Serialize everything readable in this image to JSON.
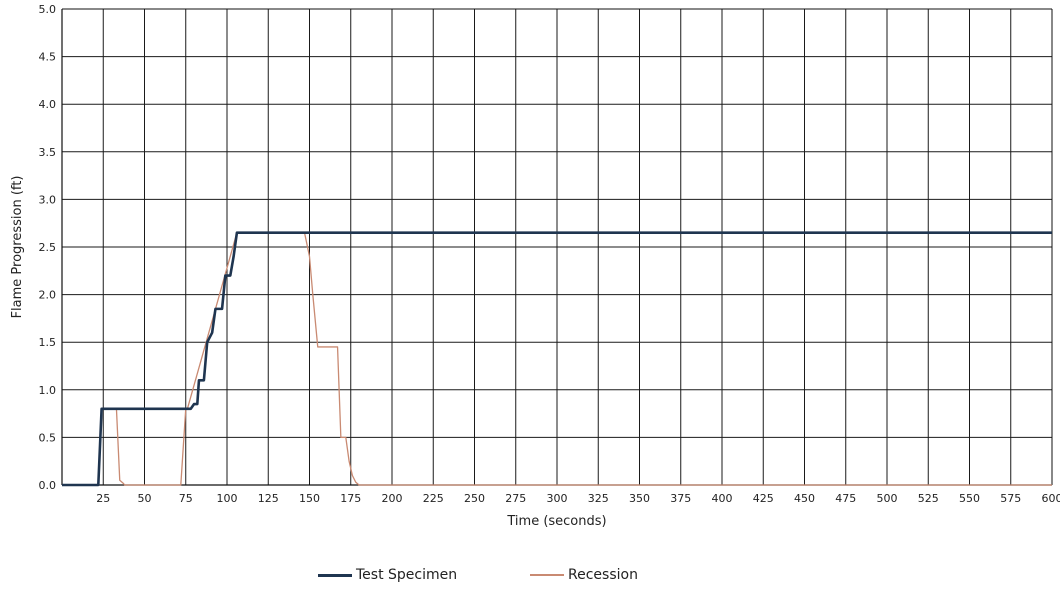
{
  "chart_data": {
    "type": "line",
    "title": "",
    "xlabel": "Time (seconds)",
    "ylabel": "Flame Progression (ft)",
    "xlim": [
      0,
      600
    ],
    "ylim": [
      0.0,
      5.0
    ],
    "x_ticks": [
      25,
      50,
      75,
      100,
      125,
      150,
      175,
      200,
      225,
      250,
      275,
      300,
      325,
      350,
      375,
      400,
      425,
      450,
      475,
      500,
      525,
      550,
      575,
      600
    ],
    "y_ticks": [
      "0.0",
      "0.5",
      "1.0",
      "1.5",
      "2.0",
      "2.5",
      "3.0",
      "3.5",
      "4.0",
      "4.5",
      "5.0"
    ],
    "grid": true,
    "legend_position": "bottom",
    "series": [
      {
        "name": "Test Specimen",
        "color": "#1f3550",
        "points": [
          [
            0,
            0.0
          ],
          [
            22,
            0.0
          ],
          [
            24,
            0.8
          ],
          [
            26,
            0.8
          ],
          [
            78,
            0.8
          ],
          [
            80,
            0.85
          ],
          [
            82,
            0.85
          ],
          [
            83,
            1.1
          ],
          [
            86,
            1.1
          ],
          [
            88,
            1.5
          ],
          [
            91,
            1.6
          ],
          [
            93,
            1.85
          ],
          [
            97,
            1.85
          ],
          [
            99,
            2.2
          ],
          [
            102,
            2.2
          ],
          [
            104,
            2.4
          ],
          [
            106,
            2.65
          ],
          [
            110,
            2.65
          ],
          [
            600,
            2.65
          ]
        ]
      },
      {
        "name": "Recession",
        "color": "#c98a72",
        "points": [
          [
            0,
            0.0
          ],
          [
            22,
            0.0
          ],
          [
            24,
            0.8
          ],
          [
            33,
            0.8
          ],
          [
            35,
            0.05
          ],
          [
            37,
            0.02
          ],
          [
            38,
            0.0
          ],
          [
            72,
            0.0
          ],
          [
            75,
            0.8
          ],
          [
            76,
            0.8
          ],
          [
            106,
            2.65
          ],
          [
            147,
            2.65
          ],
          [
            150,
            2.4
          ],
          [
            152,
            2.0
          ],
          [
            155,
            1.45
          ],
          [
            167,
            1.45
          ],
          [
            169,
            0.5
          ],
          [
            172,
            0.5
          ],
          [
            174,
            0.25
          ],
          [
            176,
            0.1
          ],
          [
            178,
            0.03
          ],
          [
            180,
            0.0
          ],
          [
            600,
            0.0
          ]
        ]
      }
    ]
  }
}
